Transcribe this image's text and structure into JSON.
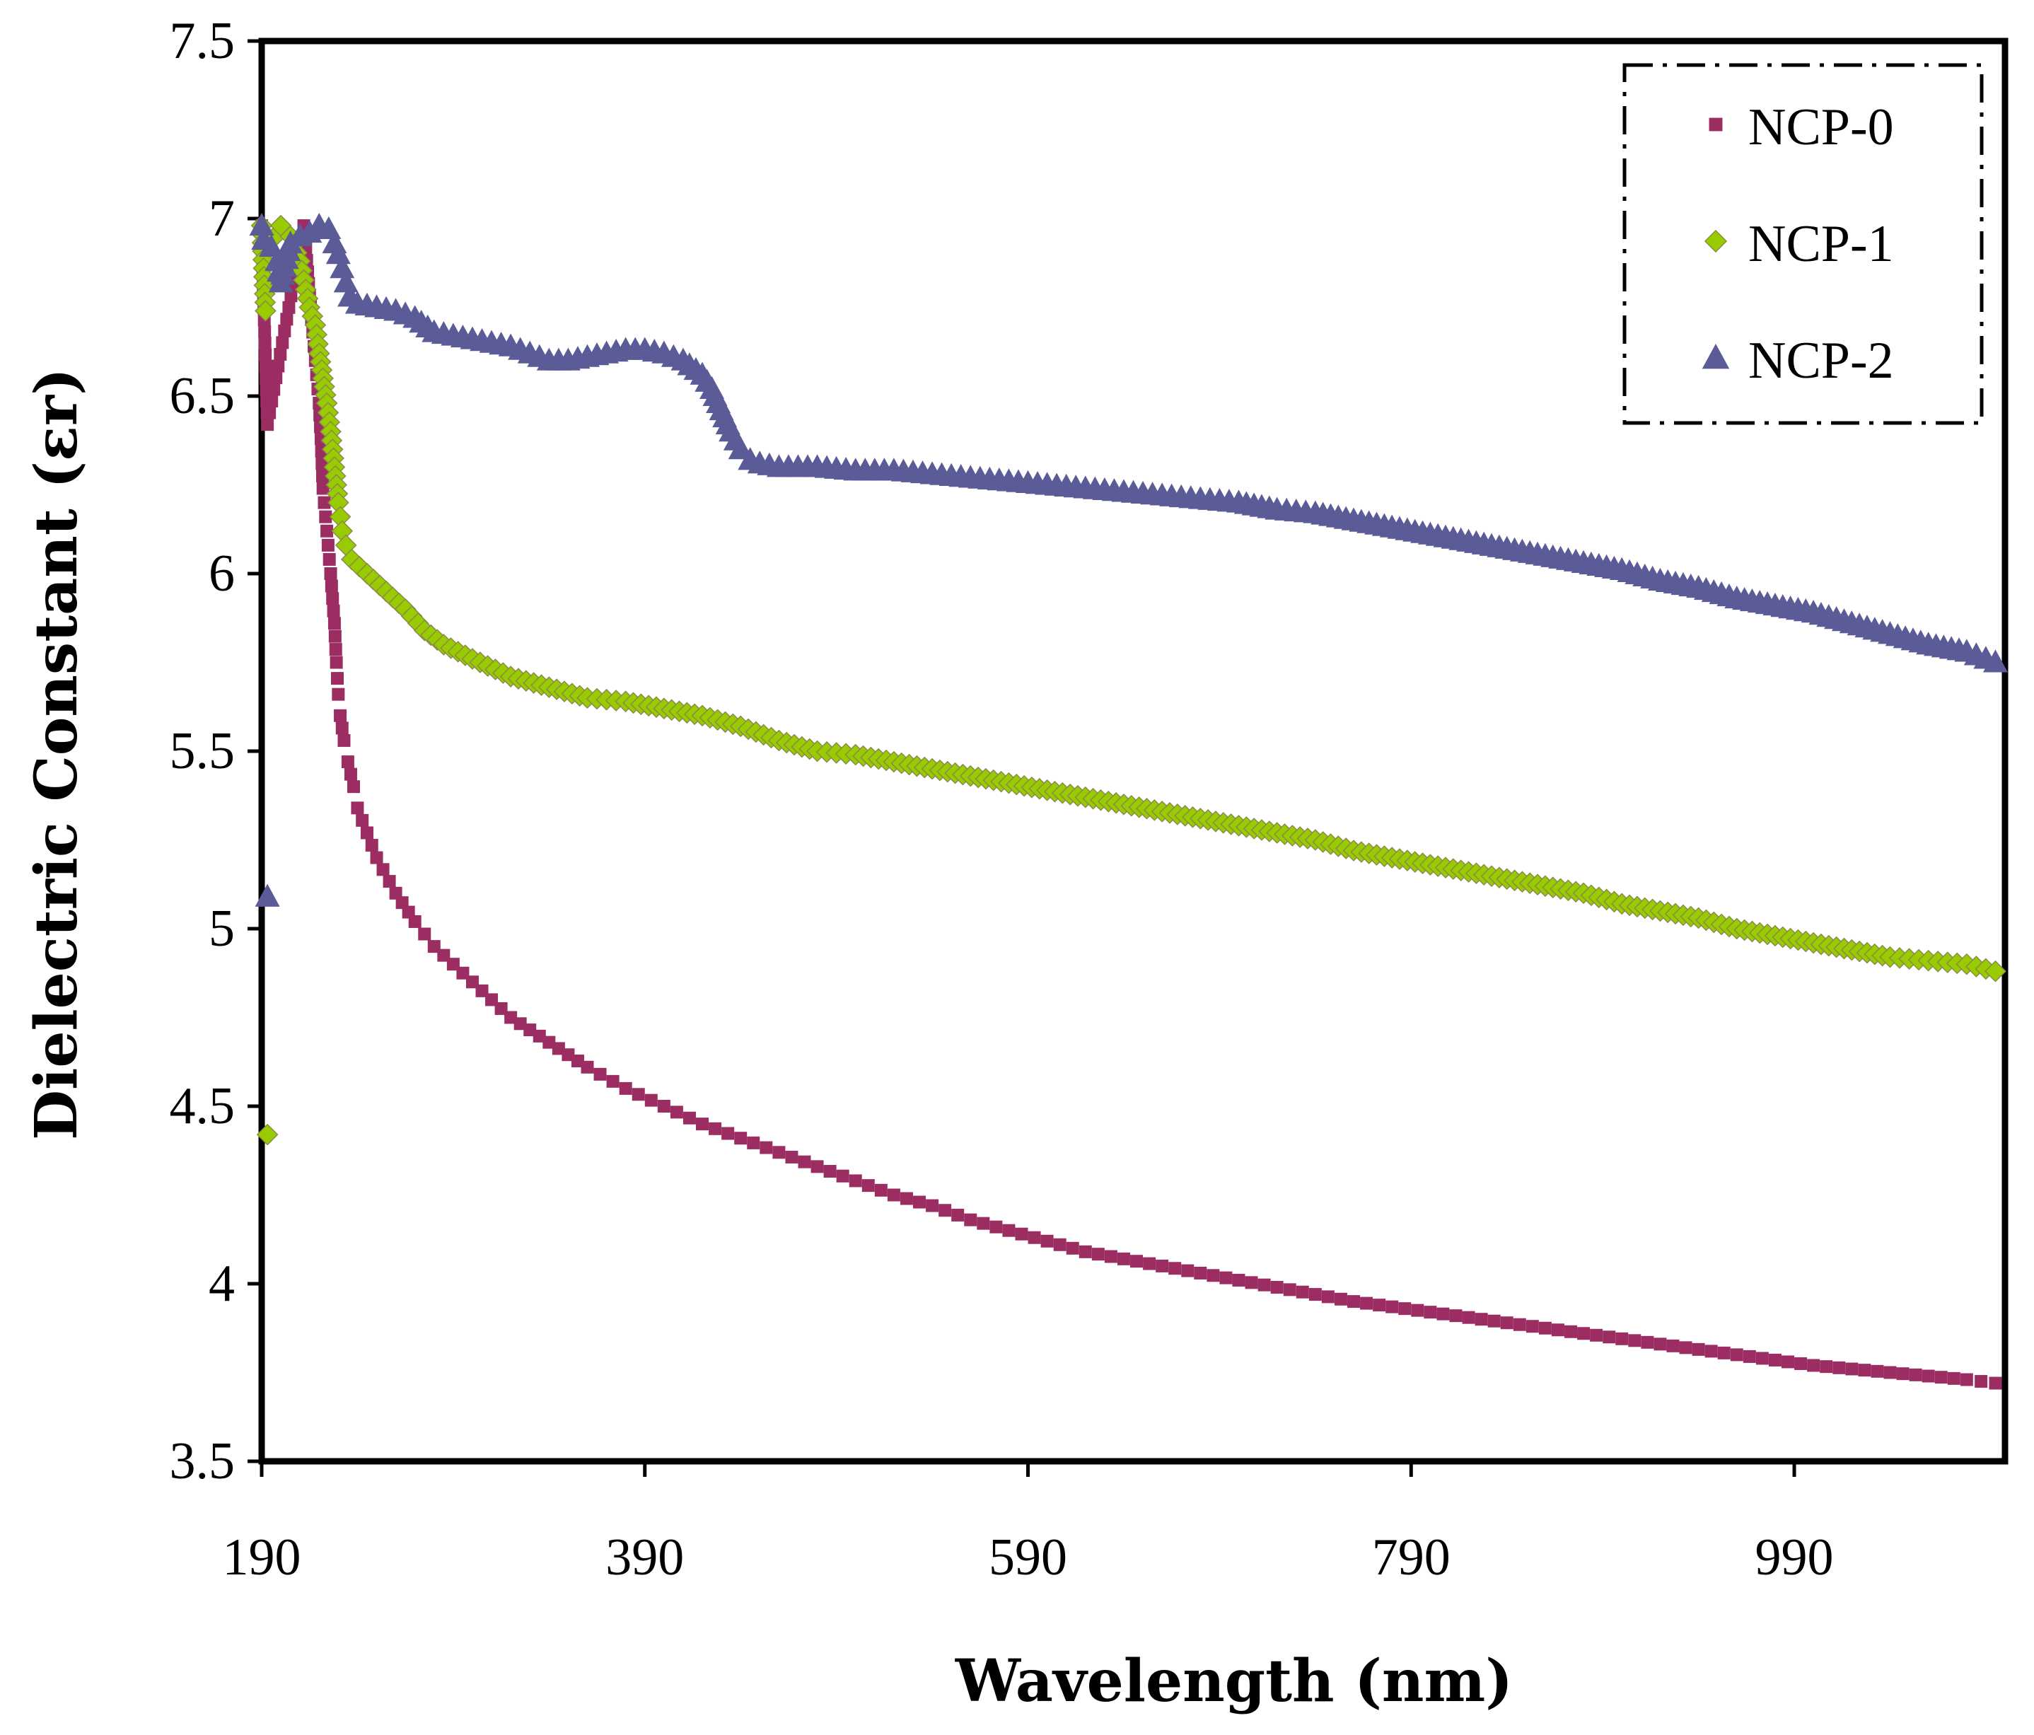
{
  "chart_data": {
    "type": "scatter",
    "title": "",
    "xlabel": "Wavelength (nm)",
    "ylabel_main": "Dielectric Constant",
    "ylabel_symbol": "εr",
    "xlim": [
      190,
      1100
    ],
    "ylim": [
      3.5,
      7.5
    ],
    "x_ticks": [
      190,
      390,
      590,
      790,
      990
    ],
    "x_tick_labels": [
      "190",
      "390",
      "590",
      "790",
      "990"
    ],
    "y_ticks": [
      3.5,
      4,
      4.5,
      5,
      5.5,
      6,
      6.5,
      7,
      7.5
    ],
    "y_tick_labels": [
      "3.5",
      "4",
      "4.5",
      "5",
      "5.5",
      "6",
      "6.5",
      "7",
      "7.5"
    ],
    "grid": false,
    "legend_position": "top-right",
    "series": [
      {
        "name": "NCP-0",
        "marker": "square",
        "color": "#9B2D62",
        "points": [
          [
            190,
            6.98
          ],
          [
            191,
            6.78
          ],
          [
            193,
            6.42
          ],
          [
            212,
            6.98
          ],
          [
            214,
            6.85
          ],
          [
            216,
            6.72
          ],
          [
            218,
            6.6
          ],
          [
            220,
            6.48
          ],
          [
            221,
            6.38
          ],
          [
            222,
            6.24
          ],
          [
            224,
            6.12
          ],
          [
            226,
            6.0
          ],
          [
            228,
            5.86
          ],
          [
            229,
            5.75
          ],
          [
            230,
            5.66
          ],
          [
            231,
            5.6
          ],
          [
            233,
            5.53
          ],
          [
            235,
            5.47
          ],
          [
            238,
            5.4
          ],
          [
            240,
            5.34
          ],
          [
            245,
            5.27
          ],
          [
            250,
            5.2
          ],
          [
            260,
            5.1
          ],
          [
            270,
            5.02
          ],
          [
            280,
            4.95
          ],
          [
            300,
            4.85
          ],
          [
            320,
            4.75
          ],
          [
            340,
            4.68
          ],
          [
            360,
            4.61
          ],
          [
            380,
            4.55
          ],
          [
            400,
            4.5
          ],
          [
            420,
            4.45
          ],
          [
            440,
            4.41
          ],
          [
            460,
            4.37
          ],
          [
            480,
            4.33
          ],
          [
            500,
            4.29
          ],
          [
            520,
            4.25
          ],
          [
            540,
            4.22
          ],
          [
            560,
            4.18
          ],
          [
            580,
            4.15
          ],
          [
            600,
            4.12
          ],
          [
            620,
            4.09
          ],
          [
            640,
            4.07
          ],
          [
            660,
            4.05
          ],
          [
            680,
            4.03
          ],
          [
            700,
            4.01
          ],
          [
            720,
            3.99
          ],
          [
            740,
            3.97
          ],
          [
            760,
            3.95
          ],
          [
            780,
            3.935
          ],
          [
            800,
            3.92
          ],
          [
            820,
            3.905
          ],
          [
            840,
            3.89
          ],
          [
            860,
            3.875
          ],
          [
            880,
            3.86
          ],
          [
            900,
            3.845
          ],
          [
            920,
            3.83
          ],
          [
            940,
            3.815
          ],
          [
            960,
            3.8
          ],
          [
            980,
            3.785
          ],
          [
            1000,
            3.77
          ],
          [
            1020,
            3.76
          ],
          [
            1040,
            3.75
          ],
          [
            1060,
            3.74
          ],
          [
            1080,
            3.73
          ],
          [
            1095,
            3.72
          ]
        ]
      },
      {
        "name": "NCP-1",
        "marker": "diamond",
        "color": "#99CC00",
        "points": [
          [
            190,
            6.98
          ],
          [
            192,
            6.74
          ],
          [
            193,
            4.42
          ],
          [
            197,
            6.95
          ],
          [
            200,
            6.98
          ],
          [
            205,
            6.95
          ],
          [
            210,
            6.88
          ],
          [
            213,
            6.8
          ],
          [
            215,
            6.75
          ],
          [
            218,
            6.7
          ],
          [
            220,
            6.62
          ],
          [
            222,
            6.55
          ],
          [
            224,
            6.48
          ],
          [
            226,
            6.4
          ],
          [
            227,
            6.35
          ],
          [
            228,
            6.3
          ],
          [
            229,
            6.25
          ],
          [
            230,
            6.2
          ],
          [
            231,
            6.16
          ],
          [
            232,
            6.12
          ],
          [
            234,
            6.08
          ],
          [
            237,
            6.04
          ],
          [
            245,
            6.0
          ],
          [
            255,
            5.95
          ],
          [
            265,
            5.9
          ],
          [
            275,
            5.84
          ],
          [
            285,
            5.8
          ],
          [
            300,
            5.76
          ],
          [
            320,
            5.71
          ],
          [
            340,
            5.68
          ],
          [
            360,
            5.65
          ],
          [
            380,
            5.64
          ],
          [
            400,
            5.62
          ],
          [
            420,
            5.6
          ],
          [
            440,
            5.57
          ],
          [
            460,
            5.53
          ],
          [
            480,
            5.5
          ],
          [
            500,
            5.49
          ],
          [
            520,
            5.47
          ],
          [
            540,
            5.45
          ],
          [
            560,
            5.43
          ],
          [
            580,
            5.41
          ],
          [
            600,
            5.39
          ],
          [
            620,
            5.37
          ],
          [
            640,
            5.35
          ],
          [
            660,
            5.33
          ],
          [
            680,
            5.31
          ],
          [
            700,
            5.29
          ],
          [
            720,
            5.27
          ],
          [
            740,
            5.25
          ],
          [
            760,
            5.22
          ],
          [
            780,
            5.2
          ],
          [
            800,
            5.18
          ],
          [
            820,
            5.16
          ],
          [
            840,
            5.14
          ],
          [
            860,
            5.12
          ],
          [
            880,
            5.1
          ],
          [
            900,
            5.07
          ],
          [
            920,
            5.05
          ],
          [
            940,
            5.03
          ],
          [
            960,
            5.0
          ],
          [
            980,
            4.98
          ],
          [
            1000,
            4.96
          ],
          [
            1020,
            4.94
          ],
          [
            1040,
            4.92
          ],
          [
            1060,
            4.91
          ],
          [
            1080,
            4.9
          ],
          [
            1095,
            4.88
          ]
        ]
      },
      {
        "name": "NCP-2",
        "marker": "triangle",
        "color": "#5B5B97",
        "points": [
          [
            190,
            6.98
          ],
          [
            191,
            6.94
          ],
          [
            193,
            5.09
          ],
          [
            195,
            6.92
          ],
          [
            198,
            6.88
          ],
          [
            200,
            6.82
          ],
          [
            205,
            6.93
          ],
          [
            210,
            6.95
          ],
          [
            215,
            6.96
          ],
          [
            220,
            6.98
          ],
          [
            225,
            6.97
          ],
          [
            228,
            6.93
          ],
          [
            230,
            6.9
          ],
          [
            232,
            6.86
          ],
          [
            234,
            6.82
          ],
          [
            236,
            6.78
          ],
          [
            240,
            6.76
          ],
          [
            250,
            6.75
          ],
          [
            260,
            6.74
          ],
          [
            270,
            6.72
          ],
          [
            280,
            6.68
          ],
          [
            290,
            6.67
          ],
          [
            300,
            6.66
          ],
          [
            310,
            6.65
          ],
          [
            320,
            6.64
          ],
          [
            330,
            6.62
          ],
          [
            340,
            6.6
          ],
          [
            350,
            6.6
          ],
          [
            360,
            6.61
          ],
          [
            370,
            6.62
          ],
          [
            380,
            6.63
          ],
          [
            390,
            6.63
          ],
          [
            400,
            6.62
          ],
          [
            410,
            6.6
          ],
          [
            420,
            6.56
          ],
          [
            425,
            6.52
          ],
          [
            430,
            6.46
          ],
          [
            435,
            6.4
          ],
          [
            440,
            6.35
          ],
          [
            445,
            6.32
          ],
          [
            450,
            6.31
          ],
          [
            460,
            6.3
          ],
          [
            480,
            6.3
          ],
          [
            500,
            6.29
          ],
          [
            520,
            6.29
          ],
          [
            540,
            6.28
          ],
          [
            560,
            6.27
          ],
          [
            580,
            6.26
          ],
          [
            600,
            6.25
          ],
          [
            620,
            6.24
          ],
          [
            640,
            6.23
          ],
          [
            660,
            6.22
          ],
          [
            680,
            6.21
          ],
          [
            700,
            6.2
          ],
          [
            720,
            6.18
          ],
          [
            740,
            6.17
          ],
          [
            760,
            6.15
          ],
          [
            780,
            6.13
          ],
          [
            800,
            6.11
          ],
          [
            820,
            6.09
          ],
          [
            840,
            6.07
          ],
          [
            860,
            6.05
          ],
          [
            880,
            6.03
          ],
          [
            900,
            6.01
          ],
          [
            920,
            5.98
          ],
          [
            940,
            5.96
          ],
          [
            960,
            5.93
          ],
          [
            980,
            5.91
          ],
          [
            1000,
            5.89
          ],
          [
            1020,
            5.86
          ],
          [
            1040,
            5.83
          ],
          [
            1060,
            5.8
          ],
          [
            1080,
            5.78
          ],
          [
            1095,
            5.75
          ]
        ]
      }
    ]
  }
}
